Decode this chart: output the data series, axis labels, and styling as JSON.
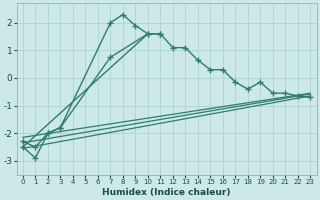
{
  "xlabel": "Humidex (Indice chaleur)",
  "line_color": "#2d7d6e",
  "bg_color": "#cce8e8",
  "grid_color": "#aacece",
  "ylim": [
    -3.5,
    2.7
  ],
  "yticks": [
    -3,
    -2,
    -1,
    0,
    1,
    2
  ],
  "xticks": [
    0,
    1,
    2,
    3,
    4,
    5,
    6,
    7,
    8,
    9,
    10,
    11,
    12,
    13,
    14,
    15,
    16,
    17,
    18,
    19,
    20,
    21,
    22,
    23
  ],
  "main_x": [
    0,
    1,
    2,
    3,
    7,
    8,
    9,
    10,
    11,
    12,
    13,
    14,
    15,
    16,
    17,
    18,
    19,
    20,
    21,
    22,
    23
  ],
  "main_y": [
    -2.5,
    -2.9,
    -2.0,
    -1.8,
    2.0,
    2.3,
    1.9,
    1.6,
    1.6,
    1.1,
    1.1,
    0.65,
    0.3,
    0.3,
    -0.15,
    -0.4,
    -0.15,
    -0.55,
    -0.55,
    -0.65,
    -0.7
  ],
  "line2_x": [
    0,
    10
  ],
  "line2_y": [
    -2.5,
    1.6
  ],
  "line3_x": [
    0,
    1,
    2,
    3,
    7,
    10,
    11
  ],
  "line3_y": [
    -2.3,
    -2.5,
    -2.0,
    -1.8,
    0.75,
    1.6,
    1.6
  ],
  "trend1_x": [
    0,
    23
  ],
  "trend1_y": [
    -2.55,
    -0.65
  ],
  "trend2_x": [
    0,
    23
  ],
  "trend2_y": [
    -2.35,
    -0.58
  ],
  "trend3_x": [
    0,
    23
  ],
  "trend3_y": [
    -2.15,
    -0.55
  ]
}
